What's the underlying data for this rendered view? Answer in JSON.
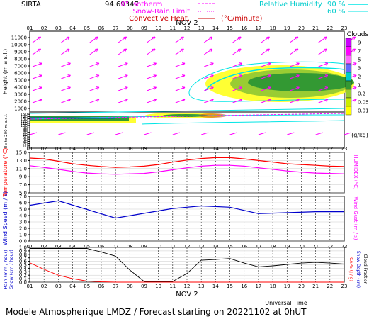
{
  "header": {
    "site": "SIRTA",
    "coords": "94.69347",
    "legend": {
      "isotherm": "0° isotherm",
      "snow_rain": "Snow-Rain Limit",
      "convective": "Convective Heat.",
      "convective_unit": "(°C/minute)",
      "rh_label": "Relative Humidity",
      "rh_90": "90 %",
      "rh_60": "60 %"
    }
  },
  "colors": {
    "magenta": "#ff00ff",
    "red": "#ff0000",
    "cyan": "#00e5e5",
    "blue": "#0000cc",
    "black": "#000000",
    "cloud_yellow": "#ffff00",
    "cloud_lightgreen": "#99cc33",
    "cloud_green": "#339933",
    "cloud_teal": "#33aa99",
    "cloud_darkteal": "#117777"
  },
  "time_axis": {
    "hours": [
      "01",
      "02",
      "03",
      "04",
      "05",
      "06",
      "07",
      "08",
      "09",
      "10",
      "11",
      "12",
      "13",
      "14",
      "15",
      "16",
      "17",
      "18",
      "19",
      "20",
      "21",
      "22",
      "23"
    ],
    "date_label": "NOV 2",
    "xlabel": "Universal Time"
  },
  "footer": "Modele Atmospherique LMDZ / Forecast starting on 20221102 at 0hUT",
  "chart_data": [
    {
      "type": "heatmap",
      "panel": "height-clouds-wind",
      "ylabel": "Height (m a.s.l.)",
      "ylabel_lower": "Up to 200 m a.s.l.",
      "yticks_upper": [
        1000,
        2000,
        3000,
        4000,
        5000,
        6000,
        7000,
        8000,
        9000,
        10000,
        11000
      ],
      "yticks_upper_labels": [
        "1000",
        "2000",
        "3000",
        "4000",
        "5000",
        "6000",
        "7000",
        "8000",
        "9000",
        "10000",
        "11000"
      ],
      "yticks_lower": [
        10,
        20,
        30,
        40,
        50,
        60,
        70,
        80,
        90,
        100,
        110,
        120,
        130,
        140,
        150
      ],
      "colorbar": {
        "title": "Clouds",
        "unit": "(g/kg)",
        "levels": [
          "9",
          "7",
          "5",
          "3",
          "2",
          "1",
          "0.2",
          "0.05",
          "0.01"
        ],
        "colors": [
          "#cc00ff",
          "#ff00ff",
          "#ff66ff",
          "#6666ff",
          "#00cccc",
          "#339933",
          "#99cc33",
          "#ccee00",
          "#ffff00"
        ]
      },
      "wind_barbs": "magenta arrows (wind direction, mostly westerly / south-westerly)"
    },
    {
      "type": "line",
      "panel": "temperature",
      "ylabel": "Temperature (°C)",
      "ylabel_right": "HUMIDEX (°C)",
      "ylim": [
        5.0,
        15.0
      ],
      "yticks": [
        "5.0",
        "7.0",
        "9.0",
        "11.0",
        "13.0",
        "15.0"
      ],
      "x": [
        1,
        2,
        3,
        4,
        5,
        6,
        7,
        8,
        9,
        10,
        11,
        12,
        13,
        14,
        15,
        16,
        17,
        18,
        19,
        20,
        21,
        22,
        23
      ],
      "series": [
        {
          "name": "Temperature",
          "color": "#ff0000",
          "values": [
            13.6,
            13.4,
            12.8,
            12.2,
            11.8,
            11.5,
            11.3,
            11.4,
            11.6,
            12.0,
            12.6,
            13.1,
            13.5,
            13.7,
            13.7,
            13.4,
            13.0,
            12.6,
            12.2,
            12.0,
            11.8,
            11.6,
            11.5
          ]
        },
        {
          "name": "HUMIDEX",
          "color": "#ff00ff",
          "values": [
            11.7,
            11.3,
            10.8,
            10.3,
            9.9,
            9.7,
            9.6,
            9.7,
            9.8,
            10.2,
            10.7,
            11.2,
            11.6,
            11.8,
            11.8,
            11.6,
            11.2,
            10.8,
            10.4,
            10.1,
            9.9,
            9.8,
            9.7
          ]
        }
      ]
    },
    {
      "type": "line",
      "panel": "wind",
      "ylabel": "Wind Speed (m / s)",
      "ylabel_right": "Wind Gust (m / s)",
      "ylim": [
        0.0,
        7.0
      ],
      "yticks": [
        "0.0",
        "1.0",
        "2.0",
        "3.0",
        "4.0",
        "5.0",
        "6.0",
        "7.0"
      ],
      "x": [
        1,
        3,
        7,
        11,
        13,
        15,
        17,
        21,
        23
      ],
      "series": [
        {
          "name": "Wind Speed",
          "color": "#0000cc",
          "values": [
            5.6,
            6.3,
            3.6,
            5.1,
            5.5,
            5.3,
            4.3,
            4.6,
            4.6
          ]
        }
      ]
    },
    {
      "type": "line",
      "panel": "precip-cloudfraction",
      "ylabel": "Rain (mm / hour)",
      "ylabel2": "Snow (cm / hour)",
      "ylabel_right": "CAPE (J / g)",
      "ylabel_right2": "Snow Depth (cm)",
      "ylabel_right3": "Cloud Fraction",
      "ylim": [
        0.0,
        1.0
      ],
      "yticks": [
        "0.0",
        "0.1",
        "0.2",
        "0.3",
        "0.4",
        "0.5",
        "0.6",
        "0.7",
        "0.8",
        "0.9",
        "1.0"
      ],
      "x": [
        1,
        2,
        3,
        4,
        5,
        6,
        7,
        8,
        9,
        10,
        11,
        12,
        13,
        14,
        15,
        16,
        17,
        18,
        19,
        20,
        21,
        22,
        23
      ],
      "series": [
        {
          "name": "Cloud Fraction",
          "color": "#000000",
          "values": [
            0.97,
            0.97,
            0.97,
            0.97,
            0.97,
            0.87,
            0.75,
            0.35,
            0.02,
            0.02,
            0.02,
            0.25,
            0.63,
            0.65,
            0.68,
            0.55,
            0.44,
            0.47,
            0.51,
            0.55,
            0.57,
            0.55,
            0.52
          ]
        },
        {
          "name": "Rain",
          "color": "#ff0000",
          "values": [
            0.56,
            0.37,
            0.2,
            0.1,
            0.03,
            0.01,
            0.0,
            0.0,
            0.0,
            0.0,
            0.0,
            0.0,
            0.0,
            0.0,
            0.0,
            0.0,
            0.0,
            0.0,
            0.0,
            0.0,
            0.0,
            0.0,
            0.0
          ]
        }
      ]
    }
  ]
}
